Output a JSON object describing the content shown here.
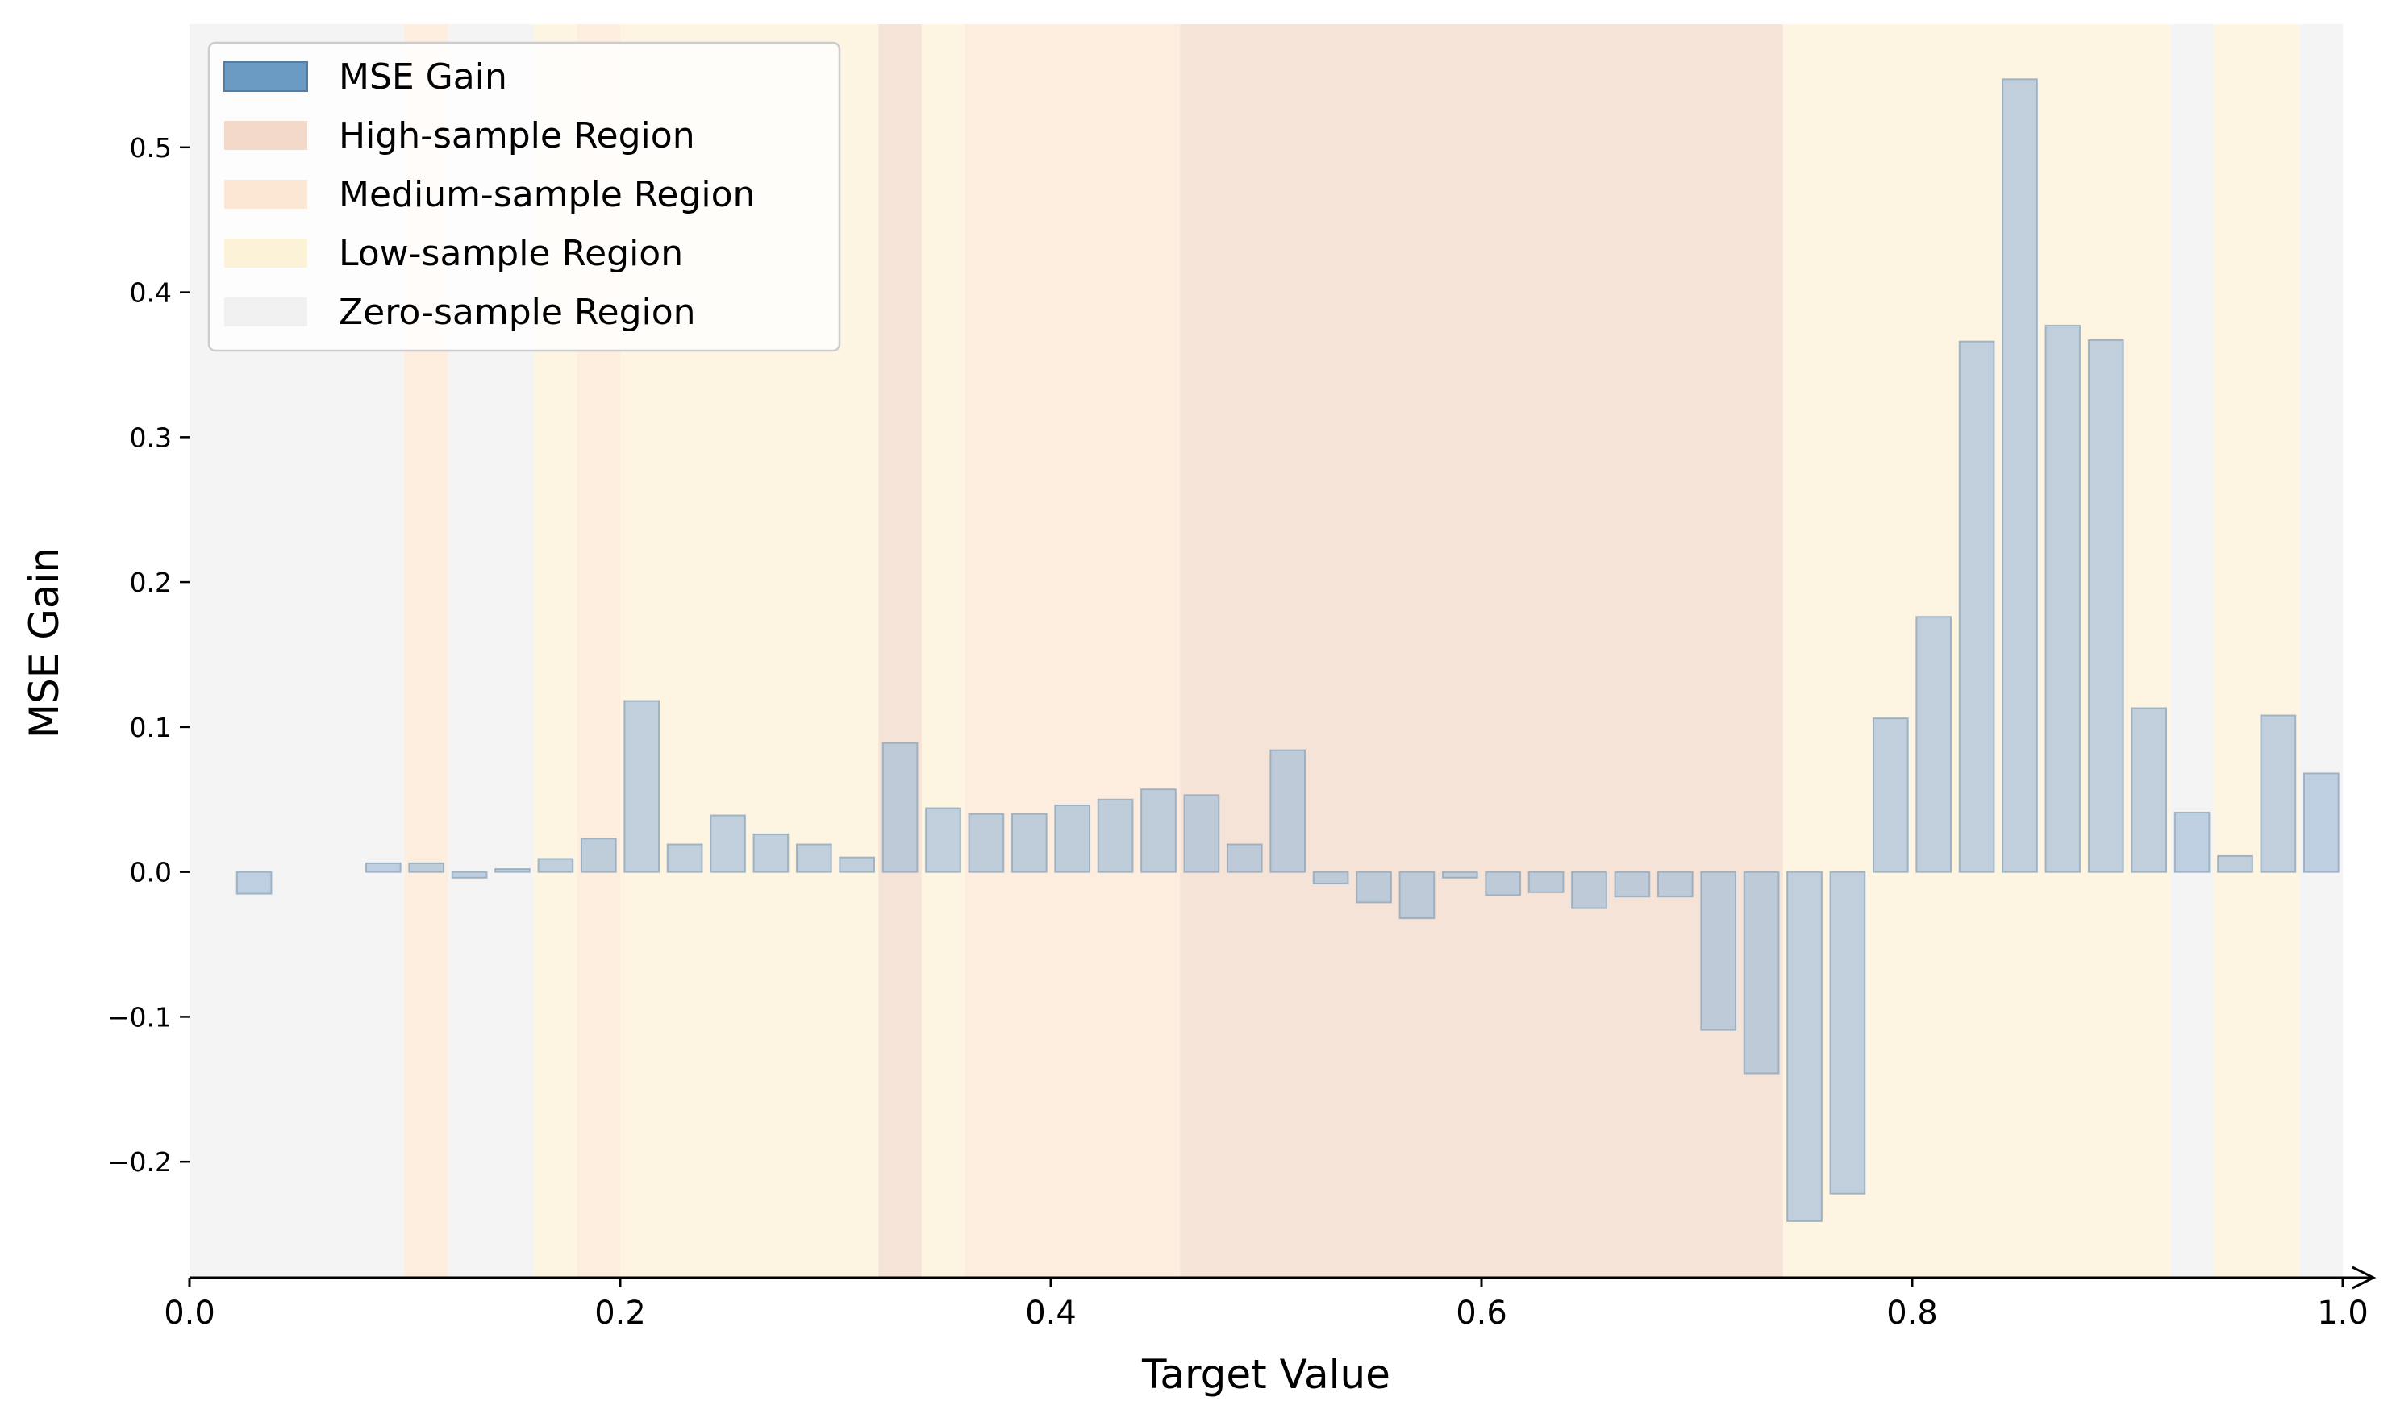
{
  "chart_data": {
    "type": "bar",
    "xlabel": "Target Value",
    "ylabel": "MSE Gain",
    "xlim": [
      0.0,
      1.0
    ],
    "ylim": [
      -0.28,
      0.585
    ],
    "xticks": [
      0.0,
      0.2,
      0.4,
      0.6,
      0.8,
      1.0
    ],
    "xtick_labels": [
      "0.0",
      "0.2",
      "0.4",
      "0.6",
      "0.8",
      "1.0"
    ],
    "yticks": [
      -0.2,
      -0.1,
      0.0,
      0.1,
      0.2,
      0.3,
      0.4,
      0.5
    ],
    "ytick_labels": [
      "−0.2",
      "−0.1",
      "0.0",
      "0.1",
      "0.2",
      "0.3",
      "0.4",
      "0.5"
    ],
    "grid": false,
    "legend_position": "top-left",
    "bar_width": 0.016,
    "bar_color": "#a8c0d8",
    "legend": [
      {
        "label": "MSE Gain",
        "color": "#6b9bc3"
      },
      {
        "label": "High-sample Region",
        "color": "#f3d9c9"
      },
      {
        "label": "Medium-sample Region",
        "color": "#fbe7d3"
      },
      {
        "label": "Low-sample Region",
        "color": "#fcf2d8"
      },
      {
        "label": "Zero-sample Region",
        "color": "#f0f0f0"
      }
    ],
    "regions": [
      {
        "type": "zero",
        "x0": 0.0,
        "x1": 0.1
      },
      {
        "type": "medium",
        "x0": 0.1,
        "x1": 0.12
      },
      {
        "type": "zero",
        "x0": 0.12,
        "x1": 0.16
      },
      {
        "type": "low",
        "x0": 0.16,
        "x1": 0.18
      },
      {
        "type": "medium",
        "x0": 0.18,
        "x1": 0.2
      },
      {
        "type": "low",
        "x0": 0.2,
        "x1": 0.32
      },
      {
        "type": "high",
        "x0": 0.32,
        "x1": 0.34
      },
      {
        "type": "low",
        "x0": 0.34,
        "x1": 0.36
      },
      {
        "type": "medium",
        "x0": 0.36,
        "x1": 0.46
      },
      {
        "type": "high",
        "x0": 0.46,
        "x1": 0.74
      },
      {
        "type": "low",
        "x0": 0.74,
        "x1": 0.92
      },
      {
        "type": "zero",
        "x0": 0.92,
        "x1": 0.94
      },
      {
        "type": "low",
        "x0": 0.94,
        "x1": 0.98
      },
      {
        "type": "zero",
        "x0": 0.98,
        "x1": 1.0
      }
    ],
    "x": [
      0.03,
      0.09,
      0.11,
      0.13,
      0.15,
      0.17,
      0.19,
      0.21,
      0.23,
      0.25,
      0.27,
      0.29,
      0.31,
      0.33,
      0.35,
      0.37,
      0.39,
      0.41,
      0.43,
      0.45,
      0.47,
      0.49,
      0.51,
      0.53,
      0.55,
      0.57,
      0.59,
      0.61,
      0.63,
      0.65,
      0.67,
      0.69,
      0.71,
      0.73,
      0.75,
      0.77,
      0.79,
      0.81,
      0.83,
      0.85,
      0.87,
      0.89,
      0.91,
      0.93,
      0.95,
      0.97,
      0.99
    ],
    "values": [
      -0.015,
      0.006,
      0.006,
      -0.004,
      0.002,
      0.009,
      0.023,
      0.118,
      0.019,
      0.039,
      0.026,
      0.019,
      0.01,
      0.089,
      0.044,
      0.04,
      0.04,
      0.046,
      0.05,
      0.057,
      0.053,
      0.019,
      0.084,
      -0.008,
      -0.021,
      -0.032,
      -0.004,
      -0.016,
      -0.014,
      -0.025,
      -0.017,
      -0.017,
      -0.109,
      -0.139,
      -0.241,
      -0.222,
      0.106,
      0.176,
      0.366,
      0.547,
      0.377,
      0.367,
      0.113,
      0.041,
      0.011,
      0.108,
      0.068
    ]
  }
}
